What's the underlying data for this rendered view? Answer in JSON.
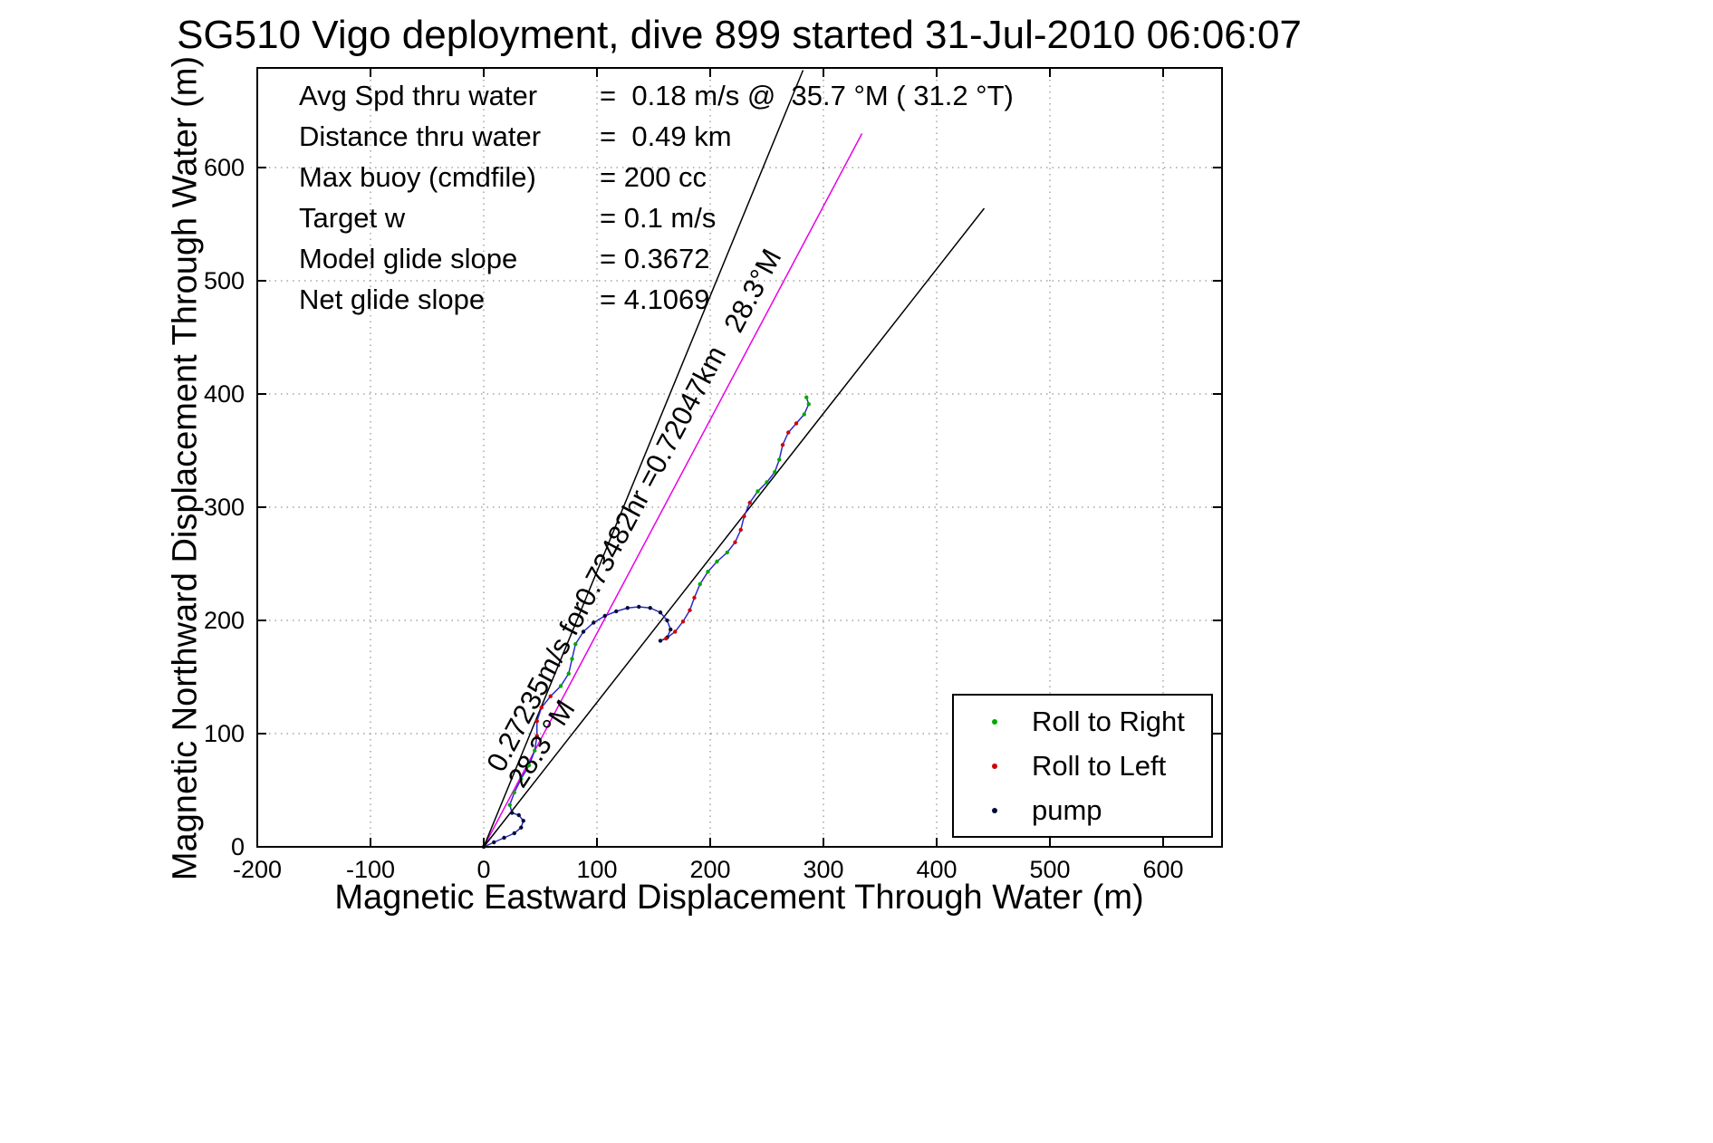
{
  "chart_data": {
    "type": "line",
    "title": "SG510 Vigo deployment, dive 899 started 31-Jul-2010 06:06:07",
    "xlabel": "Magnetic Eastward Displacement Through Water (m)",
    "ylabel": "Magnetic Northward Displacement Through Water (m)",
    "xlim": [
      -200,
      652
    ],
    "ylim": [
      0,
      688
    ],
    "xticks": [
      -200,
      -100,
      0,
      100,
      200,
      300,
      400,
      500,
      600
    ],
    "yticks": [
      0,
      100,
      200,
      300,
      400,
      500,
      600
    ],
    "grid": true,
    "colors": {
      "desired_track": "#e800e8",
      "bearing_lines": "#000000",
      "track_line": "#2929c8",
      "roll_right": "#00a800",
      "roll_left": "#d40000",
      "pump": "#000d33",
      "axis": "#000000",
      "grid": "#777777"
    },
    "info_lines": [
      {
        "label": "Avg Spd thru water",
        "value": "=  0.18 m/s @  35.7 °M ( 31.2 °T)"
      },
      {
        "label": "Distance thru water",
        "value": "=  0.49 km"
      },
      {
        "label": "Max buoy (cmdfile)",
        "value": "= 200 cc"
      },
      {
        "label": "Target w",
        "value": "= 0.1 m/s"
      },
      {
        "label": "Model glide slope",
        "value": "= 0.3672"
      },
      {
        "label": "Net glide slope",
        "value": "= 4.1069"
      }
    ],
    "reference_lines": [
      {
        "name": "desired-track-line",
        "color_key": "desired_track",
        "points": [
          [
            0,
            0
          ],
          [
            334,
            630
          ]
        ]
      },
      {
        "name": "bearing-line-upper",
        "color_key": "bearing_lines",
        "points": [
          [
            0,
            0
          ],
          [
            282,
            686
          ]
        ]
      },
      {
        "name": "bearing-line-lower",
        "color_key": "bearing_lines",
        "points": [
          [
            0,
            0
          ],
          [
            442,
            564
          ]
        ]
      }
    ],
    "annotations": [
      {
        "text": "0.27235m/s for0.73482hr =0.72047km",
        "x": 22,
        "y": 62,
        "rotation": -62
      },
      {
        "text": "28.3°M",
        "x": 232,
        "y": 450,
        "rotation": -62
      },
      {
        "text": "28.3 °M",
        "x": 40,
        "y": 47,
        "rotation": -57
      }
    ],
    "track": {
      "points": [
        [
          0,
          0
        ],
        [
          9,
          4
        ],
        [
          18,
          8
        ],
        [
          27,
          12
        ],
        [
          33,
          17
        ],
        [
          35,
          23
        ],
        [
          31,
          28
        ],
        [
          25,
          30
        ],
        [
          23,
          37
        ],
        [
          27,
          48
        ],
        [
          33,
          60
        ],
        [
          40,
          72
        ],
        [
          45,
          85
        ],
        [
          47,
          98
        ],
        [
          47,
          111
        ],
        [
          51,
          123
        ],
        [
          59,
          133
        ],
        [
          68,
          142
        ],
        [
          75,
          153
        ],
        [
          78,
          166
        ],
        [
          81,
          179
        ],
        [
          88,
          190
        ],
        [
          97,
          198
        ],
        [
          107,
          204
        ],
        [
          117,
          208
        ],
        [
          127,
          211
        ],
        [
          137,
          212
        ],
        [
          147,
          211
        ],
        [
          156,
          207
        ],
        [
          162,
          200
        ],
        [
          165,
          192
        ],
        [
          162,
          185
        ],
        [
          156,
          182
        ],
        [
          161,
          184
        ],
        [
          169,
          190
        ],
        [
          176,
          199
        ],
        [
          182,
          209
        ],
        [
          186,
          220
        ],
        [
          191,
          232
        ],
        [
          198,
          243
        ],
        [
          206,
          252
        ],
        [
          215,
          260
        ],
        [
          222,
          269
        ],
        [
          227,
          280
        ],
        [
          230,
          292
        ],
        [
          235,
          304
        ],
        [
          242,
          314
        ],
        [
          250,
          322
        ],
        [
          257,
          331
        ],
        [
          261,
          342
        ],
        [
          264,
          355
        ],
        [
          269,
          366
        ],
        [
          276,
          374
        ],
        [
          283,
          382
        ],
        [
          287,
          391
        ],
        [
          285,
          397
        ]
      ],
      "point_colors": "ppppppppgggggrrrrggggpppppppppppprrrrrggggrrrrggggrrrggg"
    },
    "legend": {
      "items": [
        {
          "label": "Roll to Right",
          "color_key": "roll_right"
        },
        {
          "label": "Roll to Left",
          "color_key": "roll_left"
        },
        {
          "label": "pump",
          "color_key": "pump"
        }
      ]
    }
  }
}
